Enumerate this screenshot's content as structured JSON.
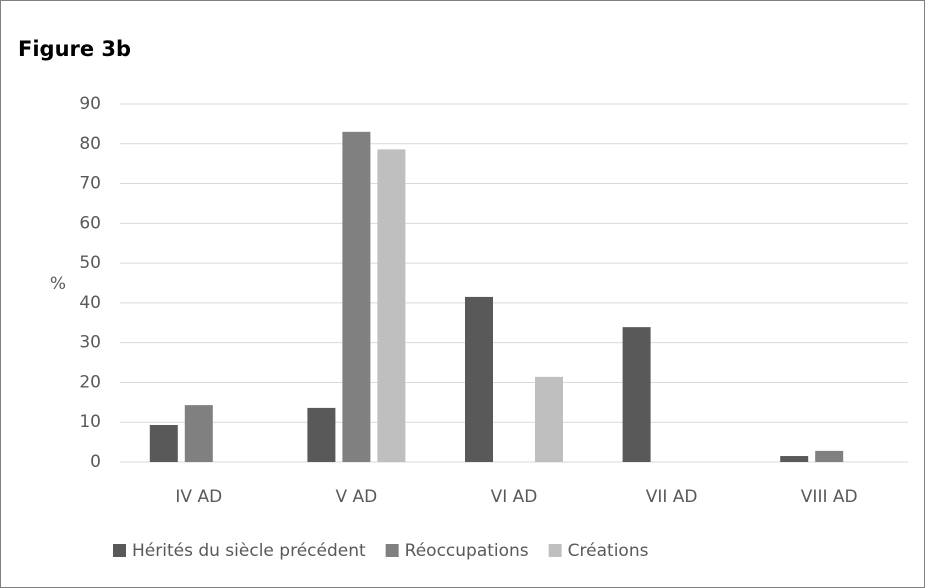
{
  "chart_data": {
    "type": "bar",
    "title": "Figure 3b",
    "y_label": "%",
    "categories": [
      "IV AD",
      "V AD",
      "VI AD",
      "VII AD",
      "VIII AD"
    ],
    "series": [
      {
        "name": "Hérités du siècle précédent",
        "color": "#595959",
        "values": [
          9.3,
          13.6,
          41.5,
          33.9,
          1.5
        ]
      },
      {
        "name": "Réoccupations",
        "color": "#808080",
        "values": [
          14.3,
          83.0,
          0,
          0,
          2.8
        ]
      },
      {
        "name": "Créations",
        "color": "#bfbfbf",
        "values": [
          0,
          78.6,
          21.4,
          0,
          0
        ]
      }
    ],
    "ylim": [
      0,
      90
    ],
    "yticks": [
      0,
      10,
      20,
      30,
      40,
      50,
      60,
      70,
      80,
      90
    ],
    "grid": true,
    "legend": "bottom"
  }
}
